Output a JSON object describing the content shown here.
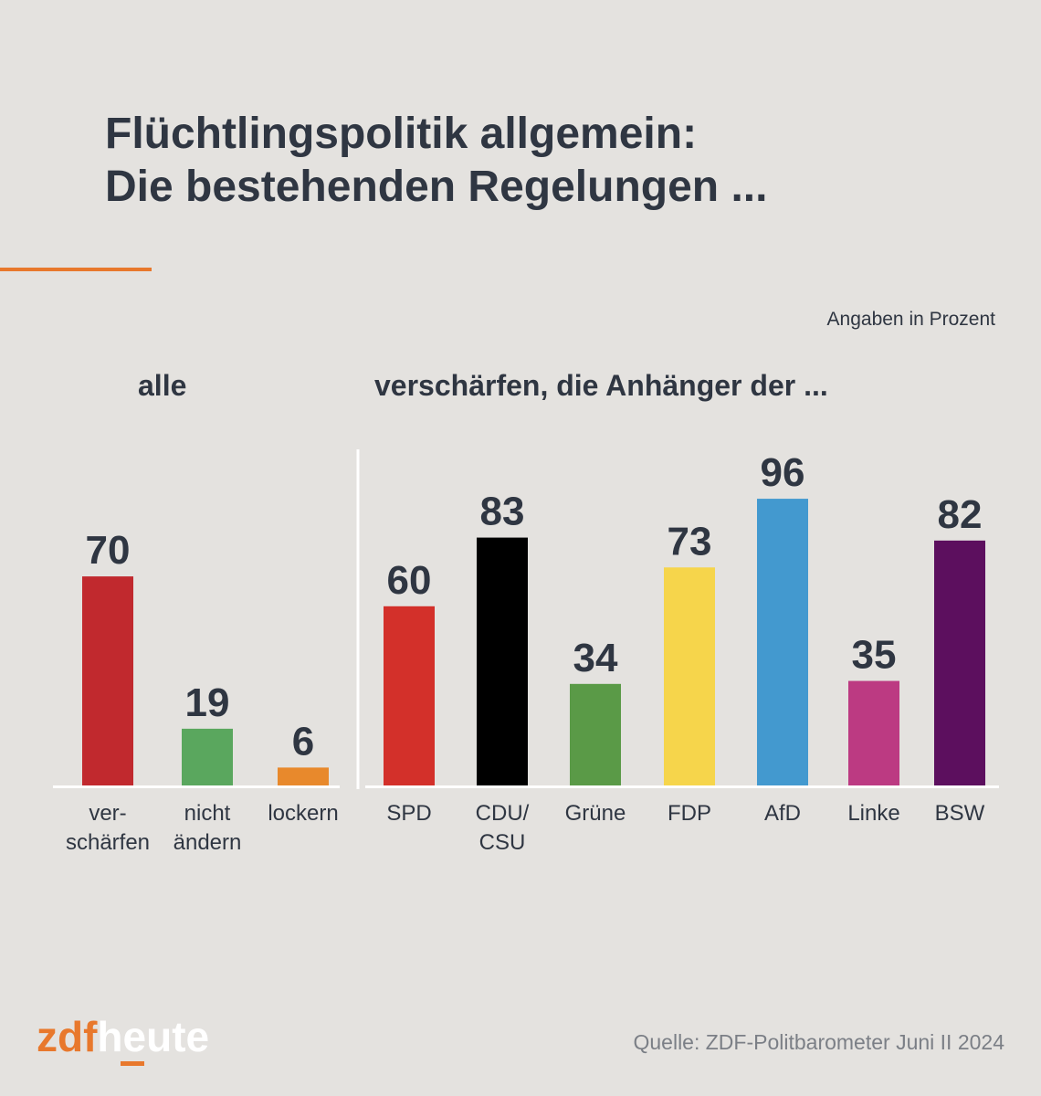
{
  "title": {
    "line1": "Flüchtlingspolitik allgemein:",
    "line2": "Die bestehenden Regelungen ..."
  },
  "units_note": "Angaben in Prozent",
  "source": "Quelle: ZDF-Politbarometer Juni II 2024",
  "logo": {
    "part1": "zdf",
    "part2": "heute"
  },
  "colors": {
    "background": "#e4e2df",
    "accent": "#e8782c",
    "text": "#2f3642",
    "baseline": "#ffffff"
  },
  "chart_data": [
    {
      "type": "bar",
      "title": "alle",
      "categories": [
        [
          "ver-",
          "schärfen"
        ],
        [
          "nicht",
          "ändern"
        ],
        [
          "lockern"
        ]
      ],
      "values": [
        70,
        19,
        6
      ],
      "colors": [
        "#c1292e",
        "#5aa75e",
        "#e8892c"
      ],
      "ylim": [
        0,
        100
      ],
      "grid": false
    },
    {
      "type": "bar",
      "title": "verschärfen, die Anhänger der ...",
      "categories": [
        [
          "SPD"
        ],
        [
          "CDU/",
          "CSU"
        ],
        [
          "Grüne"
        ],
        [
          "FDP"
        ],
        [
          "AfD"
        ],
        [
          "Linke"
        ],
        [
          "BSW"
        ]
      ],
      "values": [
        60,
        83,
        34,
        73,
        96,
        35,
        82
      ],
      "colors": [
        "#d3302a",
        "#000000",
        "#5a9a47",
        "#f6d54b",
        "#4399cf",
        "#bc3a82",
        "#5c0f5e"
      ],
      "ylim": [
        0,
        100
      ],
      "grid": false
    }
  ]
}
